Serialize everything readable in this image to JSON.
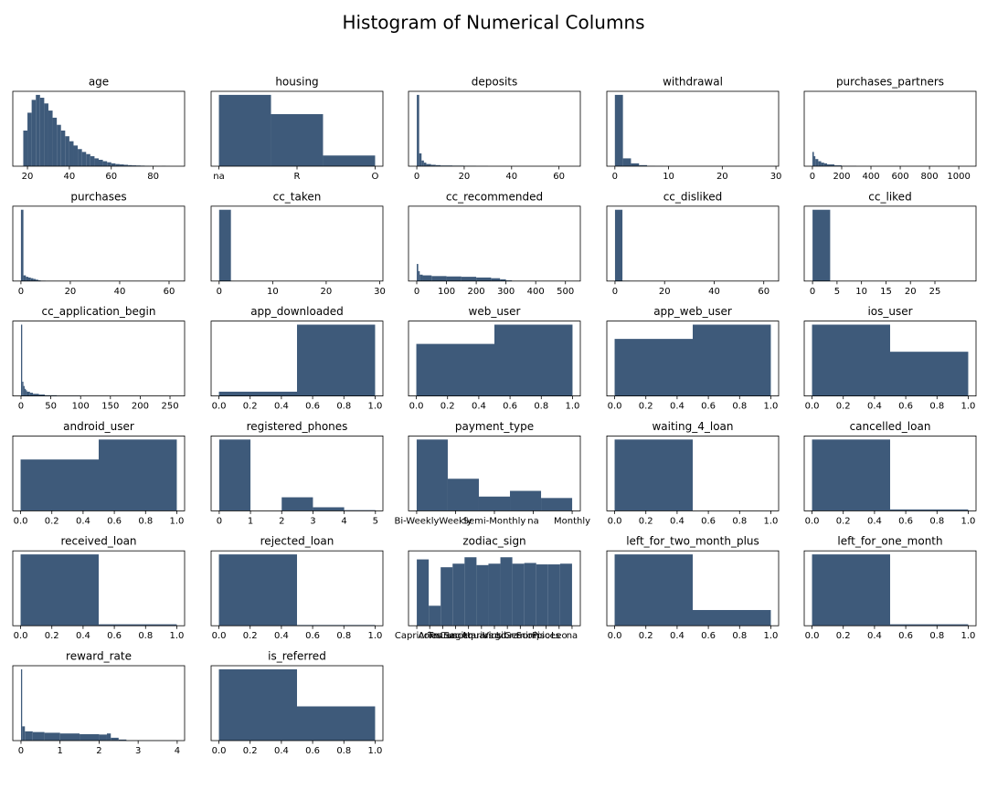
{
  "title": "Histogram of Numerical Columns",
  "chart_data": [
    {
      "type": "histogram",
      "title": "age",
      "color": "#3e5a7a",
      "bins": [
        18,
        20,
        22,
        24,
        26,
        28,
        30,
        32,
        34,
        36,
        38,
        40,
        42,
        44,
        46,
        48,
        50,
        52,
        54,
        56,
        58,
        60,
        62,
        64,
        66,
        68,
        70,
        72,
        74,
        76,
        78,
        80,
        82,
        84,
        86,
        88
      ],
      "values": [
        50,
        75,
        93,
        100,
        96,
        88,
        78,
        68,
        58,
        50,
        42,
        35,
        29,
        24,
        20,
        17,
        14,
        11,
        9,
        7,
        5.5,
        4,
        3,
        2.5,
        2,
        1.5,
        1.2,
        1,
        0.8,
        0.6,
        0.5,
        0.4,
        0.3,
        0.5,
        0.2
      ],
      "xlim": [
        13,
        95
      ],
      "ylim": [
        0,
        105
      ],
      "xticks": [
        20,
        40,
        60,
        80
      ]
    },
    {
      "type": "histogram",
      "title": "housing",
      "color": "#3e5a7a",
      "bins": [
        0,
        0.667,
        1.333,
        2
      ],
      "values": [
        100,
        73,
        15
      ],
      "xlim": [
        -0.1,
        2.1
      ],
      "ylim": [
        0,
        105
      ],
      "xticks": [
        {
          "value": 0,
          "label": "na"
        },
        {
          "value": 1,
          "label": "R"
        },
        {
          "value": 2,
          "label": "O"
        }
      ]
    },
    {
      "type": "histogram",
      "title": "deposits",
      "color": "#3e5a7a",
      "bins": [
        0,
        1,
        2,
        3,
        4,
        6,
        8,
        10,
        15,
        20,
        25,
        30,
        65
      ],
      "values": [
        100,
        18,
        8,
        5,
        3,
        2,
        1.5,
        1,
        0.8,
        0.6,
        0.3,
        0.05
      ],
      "xlim": [
        -3.5,
        69
      ],
      "ylim": [
        0,
        105
      ],
      "xticks": [
        0,
        20,
        40,
        60
      ]
    },
    {
      "type": "histogram",
      "title": "withdrawal",
      "color": "#3e5a7a",
      "bins": [
        0,
        1.5,
        3,
        4.5,
        6,
        7.5,
        9,
        30
      ],
      "values": [
        100,
        11,
        4,
        1.5,
        0.5,
        0.3,
        0.1
      ],
      "xlim": [
        -1.5,
        30.5
      ],
      "ylim": [
        0,
        105
      ],
      "xticks": [
        0,
        10,
        20,
        30
      ]
    },
    {
      "type": "histogram",
      "title": "purchases_partners",
      "color": "#3e5a7a",
      "bins": [
        0,
        10,
        20,
        40,
        60,
        80,
        100,
        150,
        200,
        300,
        1068
      ],
      "values": [
        20,
        14,
        10,
        7,
        5,
        4,
        2.5,
        1.2,
        0.4,
        0.05
      ],
      "xlim": [
        -56,
        1118
      ],
      "ylim": [
        0,
        105
      ],
      "xticks": [
        0,
        200,
        400,
        600,
        800,
        1000
      ]
    },
    {
      "type": "histogram",
      "title": "purchases",
      "color": "#3e5a7a",
      "bins": [
        0,
        1,
        2,
        3,
        4,
        5,
        6,
        7,
        8,
        10,
        65
      ],
      "values": [
        100,
        8,
        6,
        5,
        4,
        3,
        2,
        1,
        0.5,
        0.1
      ],
      "xlim": [
        -3.3,
        66.3
      ],
      "ylim": [
        0,
        105
      ],
      "xticks": [
        0,
        20,
        40,
        60
      ]
    },
    {
      "type": "histogram",
      "title": "cc_taken",
      "color": "#3e5a7a",
      "bins": [
        0,
        2.2,
        4.4,
        30
      ],
      "values": [
        100,
        0.3,
        0.05
      ],
      "xlim": [
        -1.5,
        30.6
      ],
      "ylim": [
        0,
        105
      ],
      "xticks": [
        0,
        10,
        20,
        30
      ]
    },
    {
      "type": "histogram",
      "title": "cc_recommended",
      "color": "#3e5a7a",
      "bins": [
        0,
        5,
        10,
        20,
        50,
        100,
        150,
        200,
        250,
        280,
        300,
        320,
        520
      ],
      "values": [
        24,
        14,
        9,
        8,
        7,
        6.5,
        6,
        5,
        4,
        2.5,
        1,
        0.1
      ],
      "xlim": [
        -27.7,
        550
      ],
      "ylim": [
        0,
        105
      ],
      "xticks": [
        0,
        100,
        200,
        300,
        400,
        500
      ]
    },
    {
      "type": "histogram",
      "title": "cc_disliked",
      "color": "#3e5a7a",
      "bins": [
        0,
        3,
        6,
        65
      ],
      "values": [
        100,
        0.5,
        0.05
      ],
      "xlim": [
        -3.3,
        66
      ],
      "ylim": [
        0,
        105
      ],
      "xticks": [
        0,
        20,
        40,
        60
      ]
    },
    {
      "type": "histogram",
      "title": "cc_liked",
      "color": "#3e5a7a",
      "bins": [
        0,
        3.6,
        7.2,
        32
      ],
      "values": [
        100,
        0.3,
        0.05
      ],
      "xlim": [
        -1.7,
        33.4
      ],
      "ylim": [
        0,
        105
      ],
      "xticks": [
        0,
        5,
        10,
        15,
        20,
        25
      ]
    },
    {
      "type": "histogram",
      "title": "cc_application_begin",
      "color": "#3e5a7a",
      "bins": [
        0,
        2,
        4,
        6,
        8,
        10,
        15,
        20,
        30,
        40,
        60,
        100,
        260
      ],
      "values": [
        100,
        20,
        14,
        10,
        8,
        6,
        4.5,
        3,
        2,
        1,
        0.4,
        0.1
      ],
      "xlim": [
        -13.8,
        274.5
      ],
      "ylim": [
        0,
        105
      ],
      "xticks": [
        0,
        50,
        100,
        150,
        200,
        250
      ]
    },
    {
      "type": "histogram",
      "title": "app_downloaded",
      "color": "#3e5a7a",
      "bins": [
        0,
        0.5,
        1
      ],
      "values": [
        6,
        100
      ],
      "xlim": [
        -0.05,
        1.05
      ],
      "ylim": [
        0,
        105
      ],
      "xticks": [
        {
          "value": 0,
          "label": "0.0"
        },
        0.2,
        0.4,
        0.6,
        0.8,
        {
          "value": 1,
          "label": "1.0"
        }
      ]
    },
    {
      "type": "histogram",
      "title": "web_user",
      "color": "#3e5a7a",
      "bins": [
        0,
        0.5,
        1
      ],
      "values": [
        73,
        100
      ],
      "xlim": [
        -0.05,
        1.05
      ],
      "ylim": [
        0,
        105
      ],
      "xticks": [
        {
          "value": 0,
          "label": "0.0"
        },
        0.2,
        0.4,
        0.6,
        0.8,
        {
          "value": 1,
          "label": "1.0"
        }
      ]
    },
    {
      "type": "histogram",
      "title": "app_web_user",
      "color": "#3e5a7a",
      "bins": [
        0,
        0.5,
        1
      ],
      "values": [
        80,
        100
      ],
      "xlim": [
        -0.05,
        1.05
      ],
      "ylim": [
        0,
        105
      ],
      "xticks": [
        {
          "value": 0,
          "label": "0.0"
        },
        0.2,
        0.4,
        0.6,
        0.8,
        {
          "value": 1,
          "label": "1.0"
        }
      ]
    },
    {
      "type": "histogram",
      "title": "ios_user",
      "color": "#3e5a7a",
      "bins": [
        0,
        0.5,
        1
      ],
      "values": [
        100,
        62
      ],
      "xlim": [
        -0.05,
        1.05
      ],
      "ylim": [
        0,
        105
      ],
      "xticks": [
        {
          "value": 0,
          "label": "0.0"
        },
        0.2,
        0.4,
        0.6,
        0.8,
        {
          "value": 1,
          "label": "1.0"
        }
      ]
    },
    {
      "type": "histogram",
      "title": "android_user",
      "color": "#3e5a7a",
      "bins": [
        0,
        0.5,
        1
      ],
      "values": [
        72,
        100
      ],
      "xlim": [
        -0.05,
        1.05
      ],
      "ylim": [
        0,
        105
      ],
      "xticks": [
        {
          "value": 0,
          "label": "0.0"
        },
        0.2,
        0.4,
        0.6,
        0.8,
        {
          "value": 1,
          "label": "1.0"
        }
      ]
    },
    {
      "type": "histogram",
      "title": "registered_phones",
      "color": "#3e5a7a",
      "bins": [
        0,
        1,
        2,
        3,
        4,
        5
      ],
      "values": [
        100,
        0,
        19,
        5,
        1
      ],
      "xlim": [
        -0.26,
        5.24
      ],
      "ylim": [
        0,
        105
      ],
      "xticks": [
        0,
        1,
        2,
        3,
        4,
        5
      ]
    },
    {
      "type": "histogram",
      "title": "payment_type",
      "color": "#3e5a7a",
      "bins": [
        0,
        0.8,
        1.6,
        2.4,
        3.2,
        4
      ],
      "values": [
        100,
        45,
        20,
        28,
        18
      ],
      "xlim": [
        -0.21,
        4.21
      ],
      "ylim": [
        0,
        105
      ],
      "xticks": [
        {
          "value": 0,
          "label": "Bi-Weekly"
        },
        {
          "value": 1,
          "label": "Weekly"
        },
        {
          "value": 2,
          "label": "Semi-Monthly"
        },
        {
          "value": 3,
          "label": "na"
        },
        {
          "value": 4,
          "label": "Monthly"
        }
      ]
    },
    {
      "type": "histogram",
      "title": "waiting_4_loan",
      "color": "#3e5a7a",
      "bins": [
        0,
        0.5,
        1
      ],
      "values": [
        100,
        0
      ],
      "xlim": [
        -0.05,
        1.05
      ],
      "ylim": [
        0,
        105
      ],
      "xticks": [
        {
          "value": 0,
          "label": "0.0"
        },
        0.2,
        0.4,
        0.6,
        0.8,
        {
          "value": 1,
          "label": "1.0"
        }
      ]
    },
    {
      "type": "histogram",
      "title": "cancelled_loan",
      "color": "#3e5a7a",
      "bins": [
        0,
        0.5,
        1
      ],
      "values": [
        100,
        2
      ],
      "xlim": [
        -0.05,
        1.05
      ],
      "ylim": [
        0,
        105
      ],
      "xticks": [
        {
          "value": 0,
          "label": "0.0"
        },
        0.2,
        0.4,
        0.6,
        0.8,
        {
          "value": 1,
          "label": "1.0"
        }
      ]
    },
    {
      "type": "histogram",
      "title": "received_loan",
      "color": "#3e5a7a",
      "bins": [
        0,
        0.5,
        1
      ],
      "values": [
        100,
        2
      ],
      "xlim": [
        -0.05,
        1.05
      ],
      "ylim": [
        0,
        105
      ],
      "xticks": [
        {
          "value": 0,
          "label": "0.0"
        },
        0.2,
        0.4,
        0.6,
        0.8,
        {
          "value": 1,
          "label": "1.0"
        }
      ]
    },
    {
      "type": "histogram",
      "title": "rejected_loan",
      "color": "#3e5a7a",
      "bins": [
        0,
        0.5,
        1
      ],
      "values": [
        100,
        1
      ],
      "xlim": [
        -0.05,
        1.05
      ],
      "ylim": [
        0,
        105
      ],
      "xticks": [
        {
          "value": 0,
          "label": "0.0"
        },
        0.2,
        0.4,
        0.6,
        0.8,
        {
          "value": 1,
          "label": "1.0"
        }
      ]
    },
    {
      "type": "histogram",
      "title": "zodiac_sign",
      "color": "#3e5a7a",
      "bins": [
        0,
        0.923,
        1.846,
        2.769,
        3.692,
        4.615,
        5.538,
        6.462,
        7.385,
        8.308,
        9.231,
        10.154,
        11.077,
        12
      ],
      "values": [
        93,
        28,
        82,
        87,
        96,
        85,
        87,
        96,
        87,
        88,
        86,
        86,
        87
      ],
      "xlim": [
        -0.64,
        12.64
      ],
      "ylim": [
        0,
        105
      ],
      "xticks": [
        {
          "value": 0,
          "label": "Capricorn"
        },
        {
          "value": 1,
          "label": "Aries"
        },
        {
          "value": 2,
          "label": "Taurus"
        },
        {
          "value": 3,
          "label": "Cancer"
        },
        {
          "value": 4,
          "label": "Sagittarius"
        },
        {
          "value": 5,
          "label": "Aquarius"
        },
        {
          "value": 6,
          "label": "Virgo"
        },
        {
          "value": 7,
          "label": "Libra"
        },
        {
          "value": 8,
          "label": "Gemini"
        },
        {
          "value": 9,
          "label": "Scorpio"
        },
        {
          "value": 10,
          "label": "Pisces"
        },
        {
          "value": 11,
          "label": "Leo"
        },
        {
          "value": 12,
          "label": "na"
        }
      ]
    },
    {
      "type": "histogram",
      "title": "left_for_two_month_plus",
      "color": "#3e5a7a",
      "bins": [
        0,
        0.5,
        1
      ],
      "values": [
        100,
        22
      ],
      "xlim": [
        -0.05,
        1.05
      ],
      "ylim": [
        0,
        105
      ],
      "xticks": [
        {
          "value": 0,
          "label": "0.0"
        },
        0.2,
        0.4,
        0.6,
        0.8,
        {
          "value": 1,
          "label": "1.0"
        }
      ]
    },
    {
      "type": "histogram",
      "title": "left_for_one_month",
      "color": "#3e5a7a",
      "bins": [
        0,
        0.5,
        1
      ],
      "values": [
        100,
        2
      ],
      "xlim": [
        -0.05,
        1.05
      ],
      "ylim": [
        0,
        105
      ],
      "xticks": [
        {
          "value": 0,
          "label": "0.0"
        },
        0.2,
        0.4,
        0.6,
        0.8,
        {
          "value": 1,
          "label": "1.0"
        }
      ]
    },
    {
      "type": "histogram",
      "title": "reward_rate",
      "color": "#3e5a7a",
      "bins": [
        0,
        0.03,
        0.1,
        0.3,
        0.6,
        1,
        1.5,
        2,
        2.2,
        2.3,
        2.5,
        2.7,
        4
      ],
      "values": [
        100,
        20,
        13,
        12,
        11,
        10,
        9,
        8.5,
        10,
        4,
        1.5,
        0.3
      ],
      "xlim": [
        -0.21,
        4.19
      ],
      "ylim": [
        0,
        105
      ],
      "xticks": [
        0,
        1,
        2,
        3,
        4
      ]
    },
    {
      "type": "histogram",
      "title": "is_referred",
      "color": "#3e5a7a",
      "bins": [
        0,
        0.5,
        1
      ],
      "values": [
        100,
        48
      ],
      "xlim": [
        -0.05,
        1.05
      ],
      "ylim": [
        0,
        105
      ],
      "xticks": [
        {
          "value": 0,
          "label": "0.0"
        },
        0.2,
        0.4,
        0.6,
        0.8,
        {
          "value": 1,
          "label": "1.0"
        }
      ]
    }
  ]
}
